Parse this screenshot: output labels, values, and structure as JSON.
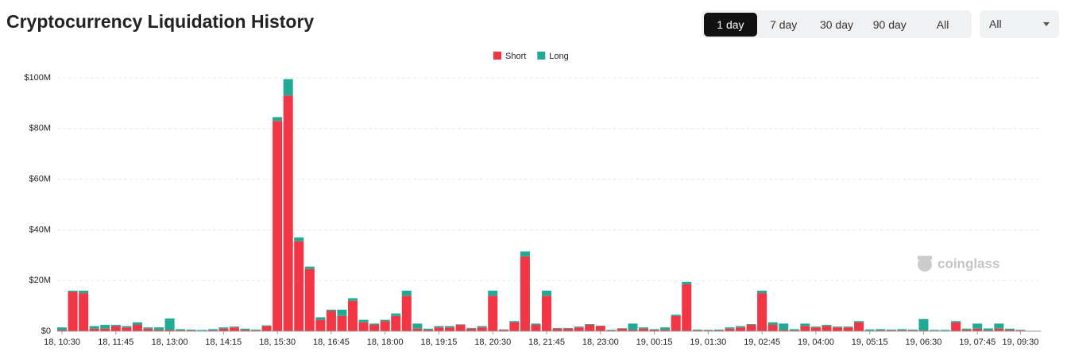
{
  "title": "Cryptocurrency Liquidation History",
  "range_buttons": [
    "1 day",
    "7 day",
    "30 day",
    "90 day",
    "All"
  ],
  "active_button": "1 day",
  "dropdown": "All",
  "watermark": "coinglass",
  "chart_data": {
    "type": "stacked_bar",
    "categories": [
      "18, 10:30",
      null,
      null,
      null,
      null,
      "18, 11:45",
      null,
      null,
      null,
      null,
      "18, 13:00",
      null,
      null,
      null,
      null,
      "18, 14:15",
      null,
      null,
      null,
      null,
      "18, 15:30",
      null,
      null,
      null,
      null,
      "18, 16:45",
      null,
      null,
      null,
      null,
      "18, 18:00",
      null,
      null,
      null,
      null,
      "18, 19:15",
      null,
      null,
      null,
      null,
      "18, 20:30",
      null,
      null,
      null,
      null,
      "18, 21:45",
      null,
      null,
      null,
      null,
      "18, 23:00",
      null,
      null,
      null,
      null,
      "19, 00:15",
      null,
      null,
      null,
      null,
      "19, 01:30",
      null,
      null,
      null,
      null,
      "19, 02:45",
      null,
      null,
      null,
      null,
      "19, 04:00",
      null,
      null,
      null,
      null,
      "19, 05:15",
      null,
      null,
      null,
      null,
      "19, 06:30",
      null,
      null,
      null,
      null,
      "19, 07:45",
      null,
      null,
      null,
      "19, 09:30"
    ],
    "series": [
      {
        "name": "Short",
        "color": "#f23645",
        "values": [
          500000.0,
          15500000.0,
          15000000.0,
          1000000.0,
          1000000.0,
          2000000.0,
          1500000.0,
          2500000.0,
          1000000.0,
          500000.0,
          500000.0,
          300000.0,
          300000.0,
          200000.0,
          300000.0,
          1000000.0,
          1500000.0,
          500000.0,
          300000.0,
          2000000.0,
          83000000.0,
          93000000.0,
          35500000.0,
          24500000.0,
          4500000.0,
          8000000.0,
          6000000.0,
          12000000.0,
          3500000.0,
          2500000.0,
          4000000.0,
          6000000.0,
          14000000.0,
          1000000.0,
          500000.0,
          1500000.0,
          1500000.0,
          2500000.0,
          1000000.0,
          1500000.0,
          14000000.0,
          500000.0,
          3500000.0,
          29500000.0,
          2500000.0,
          14000000.0,
          1000000.0,
          1000000.0,
          1500000.0,
          2500000.0,
          2000000.0,
          300000.0,
          1000000.0,
          500000.0,
          1000000.0,
          500000.0,
          500000.0,
          6000000.0,
          18500000.0,
          300000.0,
          300000.0,
          300000.0,
          1000000.0,
          1500000.0,
          2500000.0,
          15000000.0,
          2500000.0,
          500000.0,
          300000.0,
          2000000.0,
          1500000.0,
          2000000.0,
          1500000.0,
          1500000.0,
          3500000.0,
          200000.0,
          300000.0,
          300000.0,
          300000.0,
          300000.0,
          300000.0,
          200000.0,
          200000.0,
          3500000.0,
          500000.0,
          1000000.0,
          300000.0,
          1000000.0,
          500000.0,
          300000.0
        ]
      },
      {
        "name": "Long",
        "color": "#22ab94",
        "values": [
          1000000.0,
          500000.0,
          1000000.0,
          1000000.0,
          1500000.0,
          500000.0,
          500000.0,
          1000000.0,
          500000.0,
          1000000.0,
          4500000.0,
          500000.0,
          300000.0,
          300000.0,
          500000.0,
          500000.0,
          300000.0,
          500000.0,
          300000.0,
          300000.0,
          1500000.0,
          6500000.0,
          1500000.0,
          1000000.0,
          1000000.0,
          500000.0,
          2500000.0,
          1000000.0,
          1000000.0,
          500000.0,
          500000.0,
          1000000.0,
          2000000.0,
          2000000.0,
          500000.0,
          500000.0,
          500000.0,
          200000.0,
          300000.0,
          500000.0,
          2000000.0,
          200000.0,
          500000.0,
          2000000.0,
          500000.0,
          2000000.0,
          300000.0,
          300000.0,
          300000.0,
          300000.0,
          200000.0,
          200000.0,
          200000.0,
          2500000.0,
          500000.0,
          300000.0,
          1000000.0,
          500000.0,
          1000000.0,
          300000.0,
          200000.0,
          300000.0,
          500000.0,
          500000.0,
          300000.0,
          1000000.0,
          1000000.0,
          2500000.0,
          500000.0,
          1000000.0,
          300000.0,
          500000.0,
          300000.0,
          300000.0,
          500000.0,
          500000.0,
          500000.0,
          300000.0,
          500000.0,
          300000.0,
          4500000.0,
          300000.0,
          300000.0,
          500000.0,
          500000.0,
          2000000.0,
          800000.0,
          2000000.0,
          500000.0,
          200000.0
        ]
      }
    ],
    "ylim": [
      0,
      100000000
    ],
    "yticks": [
      {
        "value": 0,
        "label": "$0"
      },
      {
        "value": 20000000,
        "label": "$20M"
      },
      {
        "value": 40000000,
        "label": "$40M"
      },
      {
        "value": 60000000,
        "label": "$60M"
      },
      {
        "value": 80000000,
        "label": "$80M"
      },
      {
        "value": 100000000,
        "label": "$100M"
      }
    ],
    "grid": true,
    "legend": "top"
  }
}
